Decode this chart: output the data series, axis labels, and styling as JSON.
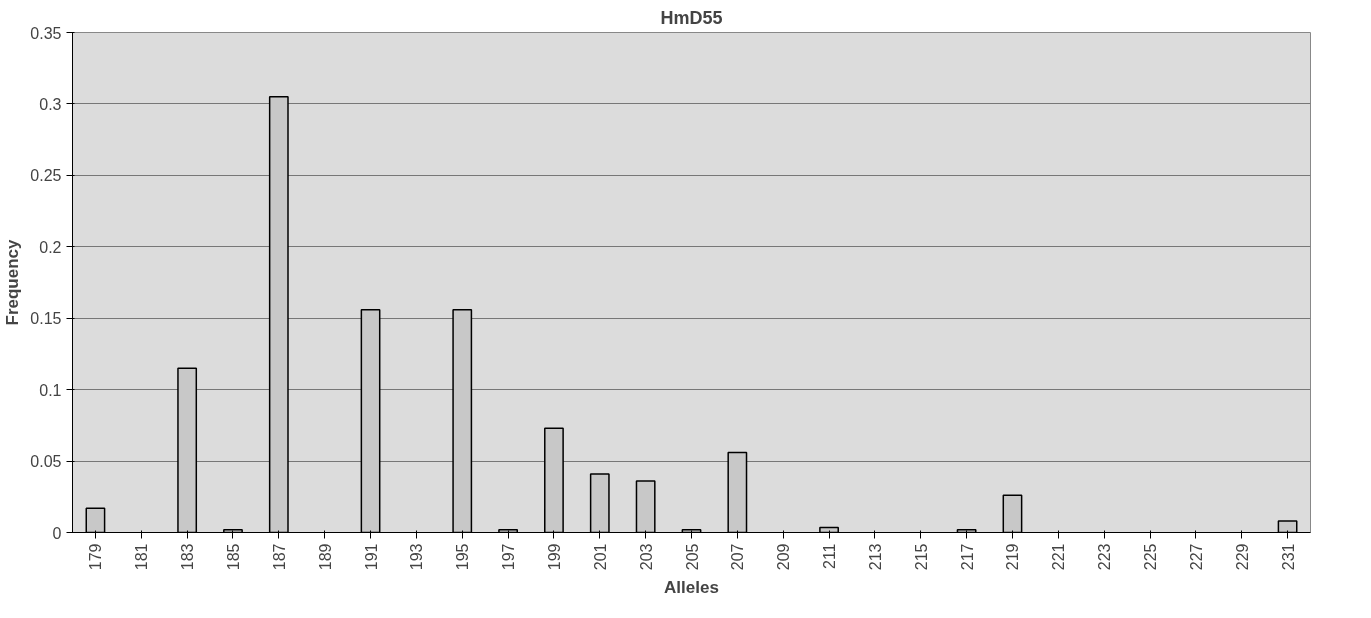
{
  "chart_data": {
    "type": "bar",
    "title": "HmD55",
    "xlabel": "Alleles",
    "ylabel": "Frequency",
    "categories": [
      "179",
      "181",
      "183",
      "185",
      "187",
      "189",
      "191",
      "193",
      "195",
      "197",
      "199",
      "201",
      "203",
      "205",
      "207",
      "209",
      "211",
      "213",
      "215",
      "217",
      "219",
      "221",
      "223",
      "225",
      "227",
      "229",
      "231"
    ],
    "values": [
      0.017,
      0,
      0.115,
      0.002,
      0.305,
      0,
      0.156,
      0,
      0.156,
      0.002,
      0.073,
      0.041,
      0.036,
      0.002,
      0.056,
      0,
      0.0035,
      0,
      0,
      0.002,
      0.026,
      0,
      0,
      0,
      0,
      0,
      0.008
    ],
    "color": "#c8c8c8",
    "ylim": [
      0,
      0.35
    ],
    "yticks": [
      0,
      0.05,
      0.1,
      0.15,
      0.2,
      0.25,
      0.3,
      0.35
    ],
    "grid": "y"
  }
}
